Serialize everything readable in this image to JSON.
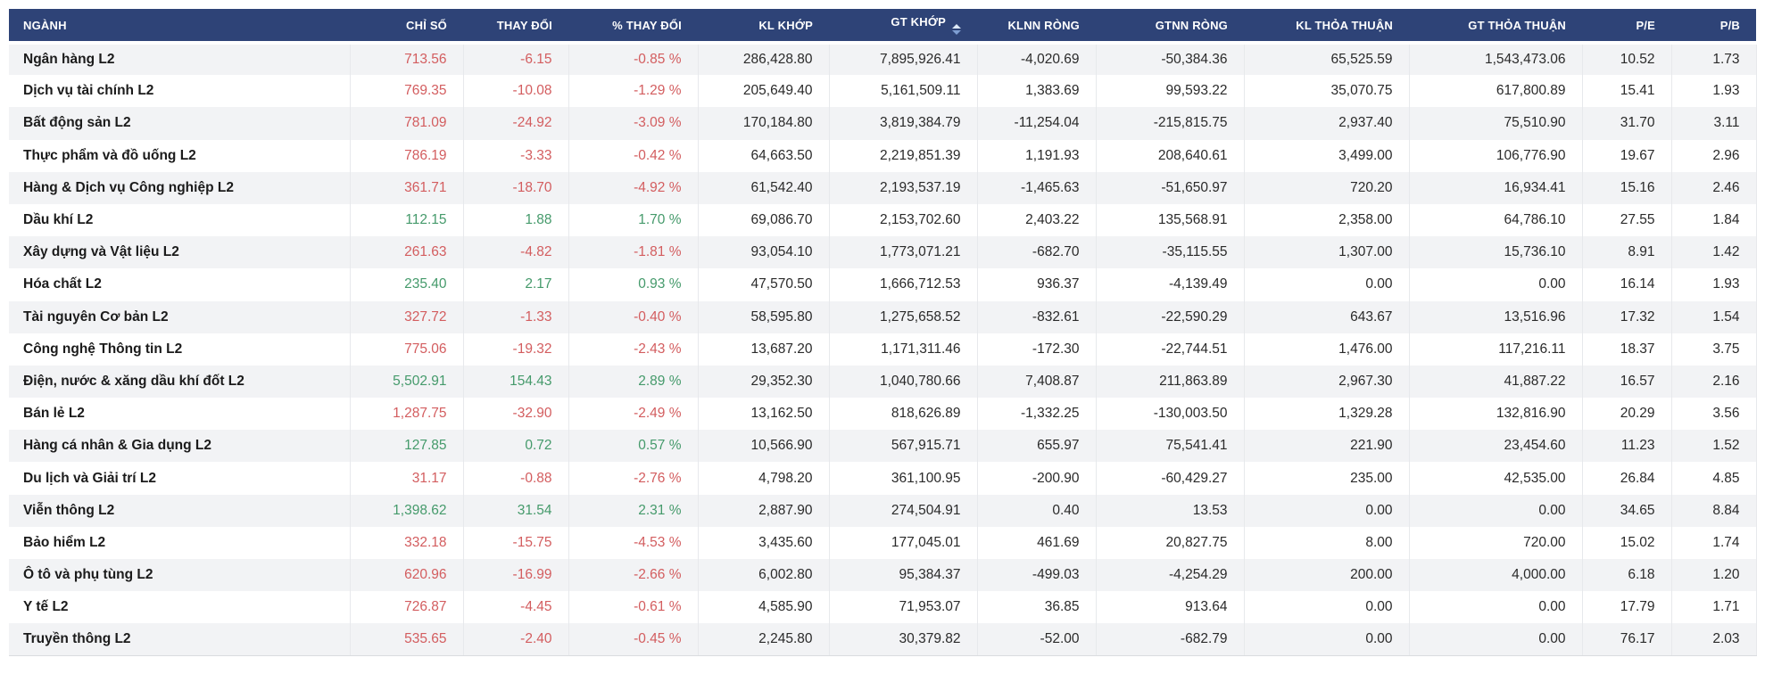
{
  "table": {
    "colors": {
      "header_bg": "#2e4377",
      "header_text": "#ffffff",
      "negative": "#d35d5f",
      "positive": "#459a6b",
      "stripe": "#f2f3f5"
    },
    "sorted_column": "gt_khop",
    "columns": [
      {
        "key": "nganh",
        "label": "NGÀNH",
        "align": "left"
      },
      {
        "key": "chi_so",
        "label": "CHỈ SỐ",
        "align": "right"
      },
      {
        "key": "thay_doi",
        "label": "THAY ĐỔI",
        "align": "right"
      },
      {
        "key": "pct_thay_doi",
        "label": "% THAY ĐỔI",
        "align": "right"
      },
      {
        "key": "kl_khop",
        "label": "KL KHỚP",
        "align": "right"
      },
      {
        "key": "gt_khop",
        "label": "GT KHỚP",
        "align": "right",
        "sorted": true,
        "sort_icon": "sort-arrows-icon"
      },
      {
        "key": "klnn_rong",
        "label": "KLNN RÒNG",
        "align": "right"
      },
      {
        "key": "gtnn_rong",
        "label": "GTNN RÒNG",
        "align": "right"
      },
      {
        "key": "kl_thoa_thuan",
        "label": "KL THỎA THUẬN",
        "align": "right"
      },
      {
        "key": "gt_thoa_thuan",
        "label": "GT THỎA THUẬN",
        "align": "right"
      },
      {
        "key": "pe",
        "label": "P/E",
        "align": "right"
      },
      {
        "key": "pb",
        "label": "P/B",
        "align": "right"
      }
    ],
    "rows": [
      {
        "nganh": "Ngân hàng L2",
        "chi_so": "713.56",
        "thay_doi": "-6.15",
        "pct_thay_doi": "-0.85 %",
        "kl_khop": "286,428.80",
        "gt_khop": "7,895,926.41",
        "klnn_rong": "-4,020.69",
        "gtnn_rong": "-50,384.36",
        "kl_thoa_thuan": "65,525.59",
        "gt_thoa_thuan": "1,543,473.06",
        "pe": "10.52",
        "pb": "1.73",
        "trend": "down"
      },
      {
        "nganh": "Dịch vụ tài chính L2",
        "chi_so": "769.35",
        "thay_doi": "-10.08",
        "pct_thay_doi": "-1.29 %",
        "kl_khop": "205,649.40",
        "gt_khop": "5,161,509.11",
        "klnn_rong": "1,383.69",
        "gtnn_rong": "99,593.22",
        "kl_thoa_thuan": "35,070.75",
        "gt_thoa_thuan": "617,800.89",
        "pe": "15.41",
        "pb": "1.93",
        "trend": "down"
      },
      {
        "nganh": "Bất động sản L2",
        "chi_so": "781.09",
        "thay_doi": "-24.92",
        "pct_thay_doi": "-3.09 %",
        "kl_khop": "170,184.80",
        "gt_khop": "3,819,384.79",
        "klnn_rong": "-11,254.04",
        "gtnn_rong": "-215,815.75",
        "kl_thoa_thuan": "2,937.40",
        "gt_thoa_thuan": "75,510.90",
        "pe": "31.70",
        "pb": "3.11",
        "trend": "down"
      },
      {
        "nganh": "Thực phẩm và đồ uống L2",
        "chi_so": "786.19",
        "thay_doi": "-3.33",
        "pct_thay_doi": "-0.42 %",
        "kl_khop": "64,663.50",
        "gt_khop": "2,219,851.39",
        "klnn_rong": "1,191.93",
        "gtnn_rong": "208,640.61",
        "kl_thoa_thuan": "3,499.00",
        "gt_thoa_thuan": "106,776.90",
        "pe": "19.67",
        "pb": "2.96",
        "trend": "down"
      },
      {
        "nganh": "Hàng & Dịch vụ Công nghiệp L2",
        "chi_so": "361.71",
        "thay_doi": "-18.70",
        "pct_thay_doi": "-4.92 %",
        "kl_khop": "61,542.40",
        "gt_khop": "2,193,537.19",
        "klnn_rong": "-1,465.63",
        "gtnn_rong": "-51,650.97",
        "kl_thoa_thuan": "720.20",
        "gt_thoa_thuan": "16,934.41",
        "pe": "15.16",
        "pb": "2.46",
        "trend": "down"
      },
      {
        "nganh": "Dầu khí L2",
        "chi_so": "112.15",
        "thay_doi": "1.88",
        "pct_thay_doi": "1.70 %",
        "kl_khop": "69,086.70",
        "gt_khop": "2,153,702.60",
        "klnn_rong": "2,403.22",
        "gtnn_rong": "135,568.91",
        "kl_thoa_thuan": "2,358.00",
        "gt_thoa_thuan": "64,786.10",
        "pe": "27.55",
        "pb": "1.84",
        "trend": "up"
      },
      {
        "nganh": "Xây dựng và Vật liệu L2",
        "chi_so": "261.63",
        "thay_doi": "-4.82",
        "pct_thay_doi": "-1.81 %",
        "kl_khop": "93,054.10",
        "gt_khop": "1,773,071.21",
        "klnn_rong": "-682.70",
        "gtnn_rong": "-35,115.55",
        "kl_thoa_thuan": "1,307.00",
        "gt_thoa_thuan": "15,736.10",
        "pe": "8.91",
        "pb": "1.42",
        "trend": "down"
      },
      {
        "nganh": "Hóa chất L2",
        "chi_so": "235.40",
        "thay_doi": "2.17",
        "pct_thay_doi": "0.93 %",
        "kl_khop": "47,570.50",
        "gt_khop": "1,666,712.53",
        "klnn_rong": "936.37",
        "gtnn_rong": "-4,139.49",
        "kl_thoa_thuan": "0.00",
        "gt_thoa_thuan": "0.00",
        "pe": "16.14",
        "pb": "1.93",
        "trend": "up"
      },
      {
        "nganh": "Tài nguyên Cơ bản L2",
        "chi_so": "327.72",
        "thay_doi": "-1.33",
        "pct_thay_doi": "-0.40 %",
        "kl_khop": "58,595.80",
        "gt_khop": "1,275,658.52",
        "klnn_rong": "-832.61",
        "gtnn_rong": "-22,590.29",
        "kl_thoa_thuan": "643.67",
        "gt_thoa_thuan": "13,516.96",
        "pe": "17.32",
        "pb": "1.54",
        "trend": "down"
      },
      {
        "nganh": "Công nghệ Thông tin L2",
        "chi_so": "775.06",
        "thay_doi": "-19.32",
        "pct_thay_doi": "-2.43 %",
        "kl_khop": "13,687.20",
        "gt_khop": "1,171,311.46",
        "klnn_rong": "-172.30",
        "gtnn_rong": "-22,744.51",
        "kl_thoa_thuan": "1,476.00",
        "gt_thoa_thuan": "117,216.11",
        "pe": "18.37",
        "pb": "3.75",
        "trend": "down"
      },
      {
        "nganh": "Điện, nước & xăng dầu khí đốt L2",
        "chi_so": "5,502.91",
        "thay_doi": "154.43",
        "pct_thay_doi": "2.89 %",
        "kl_khop": "29,352.30",
        "gt_khop": "1,040,780.66",
        "klnn_rong": "7,408.87",
        "gtnn_rong": "211,863.89",
        "kl_thoa_thuan": "2,967.30",
        "gt_thoa_thuan": "41,887.22",
        "pe": "16.57",
        "pb": "2.16",
        "trend": "up"
      },
      {
        "nganh": "Bán lẻ L2",
        "chi_so": "1,287.75",
        "thay_doi": "-32.90",
        "pct_thay_doi": "-2.49 %",
        "kl_khop": "13,162.50",
        "gt_khop": "818,626.89",
        "klnn_rong": "-1,332.25",
        "gtnn_rong": "-130,003.50",
        "kl_thoa_thuan": "1,329.28",
        "gt_thoa_thuan": "132,816.90",
        "pe": "20.29",
        "pb": "3.56",
        "trend": "down"
      },
      {
        "nganh": "Hàng cá nhân & Gia dụng L2",
        "chi_so": "127.85",
        "thay_doi": "0.72",
        "pct_thay_doi": "0.57 %",
        "kl_khop": "10,566.90",
        "gt_khop": "567,915.71",
        "klnn_rong": "655.97",
        "gtnn_rong": "75,541.41",
        "kl_thoa_thuan": "221.90",
        "gt_thoa_thuan": "23,454.60",
        "pe": "11.23",
        "pb": "1.52",
        "trend": "up"
      },
      {
        "nganh": "Du lịch và Giải trí L2",
        "chi_so": "31.17",
        "thay_doi": "-0.88",
        "pct_thay_doi": "-2.76 %",
        "kl_khop": "4,798.20",
        "gt_khop": "361,100.95",
        "klnn_rong": "-200.90",
        "gtnn_rong": "-60,429.27",
        "kl_thoa_thuan": "235.00",
        "gt_thoa_thuan": "42,535.00",
        "pe": "26.84",
        "pb": "4.85",
        "trend": "down"
      },
      {
        "nganh": "Viễn thông L2",
        "chi_so": "1,398.62",
        "thay_doi": "31.54",
        "pct_thay_doi": "2.31 %",
        "kl_khop": "2,887.90",
        "gt_khop": "274,504.91",
        "klnn_rong": "0.40",
        "gtnn_rong": "13.53",
        "kl_thoa_thuan": "0.00",
        "gt_thoa_thuan": "0.00",
        "pe": "34.65",
        "pb": "8.84",
        "trend": "up"
      },
      {
        "nganh": "Bảo hiểm L2",
        "chi_so": "332.18",
        "thay_doi": "-15.75",
        "pct_thay_doi": "-4.53 %",
        "kl_khop": "3,435.60",
        "gt_khop": "177,045.01",
        "klnn_rong": "461.69",
        "gtnn_rong": "20,827.75",
        "kl_thoa_thuan": "8.00",
        "gt_thoa_thuan": "720.00",
        "pe": "15.02",
        "pb": "1.74",
        "trend": "down"
      },
      {
        "nganh": "Ô tô và phụ tùng L2",
        "chi_so": "620.96",
        "thay_doi": "-16.99",
        "pct_thay_doi": "-2.66 %",
        "kl_khop": "6,002.80",
        "gt_khop": "95,384.37",
        "klnn_rong": "-499.03",
        "gtnn_rong": "-4,254.29",
        "kl_thoa_thuan": "200.00",
        "gt_thoa_thuan": "4,000.00",
        "pe": "6.18",
        "pb": "1.20",
        "trend": "down"
      },
      {
        "nganh": "Y tế L2",
        "chi_so": "726.87",
        "thay_doi": "-4.45",
        "pct_thay_doi": "-0.61 %",
        "kl_khop": "4,585.90",
        "gt_khop": "71,953.07",
        "klnn_rong": "36.85",
        "gtnn_rong": "913.64",
        "kl_thoa_thuan": "0.00",
        "gt_thoa_thuan": "0.00",
        "pe": "17.79",
        "pb": "1.71",
        "trend": "down"
      },
      {
        "nganh": "Truyền thông L2",
        "chi_so": "535.65",
        "thay_doi": "-2.40",
        "pct_thay_doi": "-0.45 %",
        "kl_khop": "2,245.80",
        "gt_khop": "30,379.82",
        "klnn_rong": "-52.00",
        "gtnn_rong": "-682.79",
        "kl_thoa_thuan": "0.00",
        "gt_thoa_thuan": "0.00",
        "pe": "76.17",
        "pb": "2.03",
        "trend": "down"
      }
    ]
  }
}
